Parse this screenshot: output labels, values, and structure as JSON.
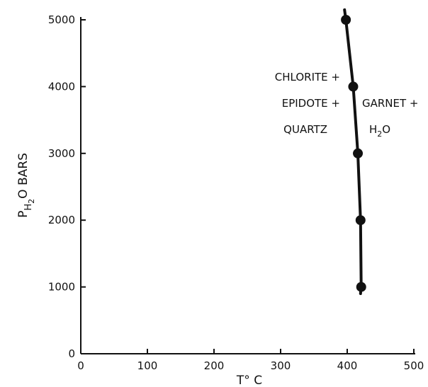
{
  "chart_data": {
    "type": "line",
    "xlabel": "T° C",
    "ylabel_main": "P",
    "ylabel_sub": "H",
    "ylabel_subsub": "2",
    "ylabel_tail": "O BARS",
    "xlim": [
      0,
      500
    ],
    "ylim": [
      0,
      5000
    ],
    "x_ticks": [
      0,
      100,
      200,
      300,
      400,
      500
    ],
    "x_tick_labels": [
      "0",
      "100",
      "200",
      "300",
      "400",
      "500"
    ],
    "y_ticks": [
      0,
      1000,
      2000,
      3000,
      4000,
      5000
    ],
    "y_tick_labels": [
      "0",
      "1000",
      "2000",
      "3000",
      "4000",
      "5000"
    ],
    "grid": false,
    "series": [
      {
        "points": [
          {
            "x": 420,
            "y": 900
          },
          {
            "x": 421,
            "y": 1000
          },
          {
            "x": 420,
            "y": 2000
          },
          {
            "x": 416,
            "y": 3000
          },
          {
            "x": 409,
            "y": 4000
          },
          {
            "x": 398,
            "y": 5000
          },
          {
            "x": 396,
            "y": 5150
          }
        ],
        "markers": [
          {
            "x": 421,
            "y": 1000
          },
          {
            "x": 420,
            "y": 2000
          },
          {
            "x": 416,
            "y": 3000
          },
          {
            "x": 409,
            "y": 4000
          },
          {
            "x": 398,
            "y": 5000
          }
        ],
        "color": "#111111"
      }
    ],
    "annotations": {
      "left_lines": [
        "CHLORITE +",
        "EPIDOTE +",
        "QUARTZ"
      ],
      "right_line1": "GARNET +",
      "right_h": "H",
      "right_sub": "2",
      "right_o": "O"
    }
  }
}
